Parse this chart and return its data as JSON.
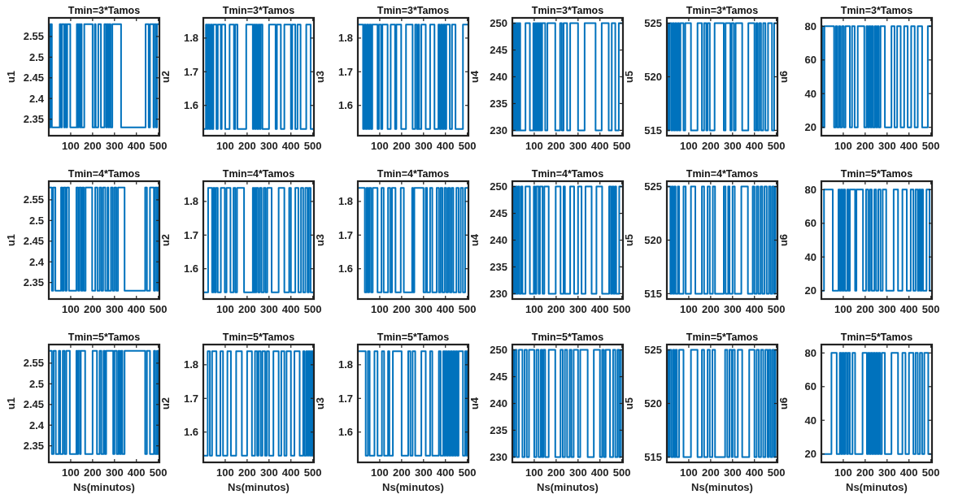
{
  "chart_data": [
    {
      "type": "step",
      "title": "Tmin=3*Tamos",
      "ylabel": "u1",
      "color": "#0072bd",
      "xlim": [
        0,
        505
      ],
      "ylim": [
        2.31,
        2.595
      ],
      "xticks": [
        100,
        200,
        300,
        400,
        500
      ],
      "yticks": [
        2.35,
        2.4,
        2.45,
        2.5,
        2.55
      ],
      "x": [
        0,
        4,
        8,
        14,
        50,
        56,
        60,
        70,
        74,
        80,
        84,
        98,
        128,
        132,
        136,
        142,
        146,
        150,
        162,
        200,
        210,
        214,
        226,
        238,
        254,
        262,
        266,
        272,
        276,
        282,
        290,
        330,
        442,
        456,
        462,
        478,
        482,
        490,
        494,
        505
      ],
      "values": [
        2.58,
        2.33,
        2.58,
        2.33,
        2.58,
        2.33,
        2.58,
        2.33,
        2.58,
        2.33,
        2.58,
        2.33,
        2.58,
        2.33,
        2.58,
        2.33,
        2.58,
        2.33,
        2.58,
        2.33,
        2.58,
        2.33,
        2.58,
        2.33,
        2.58,
        2.33,
        2.58,
        2.33,
        2.58,
        2.33,
        2.58,
        2.33,
        2.58,
        2.33,
        2.58,
        2.33,
        2.58,
        2.33,
        2.58,
        2.33
      ]
    },
    {
      "type": "step",
      "title": "Tmin=3*Tamos",
      "ylabel": "u2",
      "color": "#0072bd",
      "xlim": [
        0,
        505
      ],
      "ylim": [
        1.51,
        1.86
      ],
      "xticks": [
        100,
        200,
        300,
        400,
        500
      ],
      "yticks": [
        1.6,
        1.7,
        1.8
      ],
      "x": [
        0,
        12,
        18,
        22,
        28,
        34,
        40,
        46,
        60,
        66,
        80,
        84,
        100,
        120,
        140,
        146,
        156,
        196,
        226,
        230,
        236,
        240,
        246,
        252,
        258,
        262,
        270,
        300,
        330,
        336,
        354,
        370,
        400,
        406,
        420,
        430,
        444,
        470,
        490,
        505
      ],
      "values": [
        1.53,
        1.84,
        1.53,
        1.84,
        1.53,
        1.84,
        1.53,
        1.84,
        1.53,
        1.84,
        1.53,
        1.84,
        1.53,
        1.84,
        1.53,
        1.84,
        1.53,
        1.84,
        1.53,
        1.84,
        1.53,
        1.84,
        1.53,
        1.84,
        1.53,
        1.84,
        1.53,
        1.84,
        1.53,
        1.84,
        1.53,
        1.84,
        1.53,
        1.84,
        1.53,
        1.84,
        1.53,
        1.84,
        1.53,
        1.84
      ]
    },
    {
      "type": "step",
      "title": "Tmin=3*Tamos",
      "ylabel": "u3",
      "color": "#0072bd",
      "xlim": [
        0,
        505
      ],
      "ylim": [
        1.51,
        1.86
      ],
      "xticks": [
        100,
        200,
        300,
        400,
        500
      ],
      "yticks": [
        1.6,
        1.7,
        1.8
      ],
      "x": [
        0,
        24,
        30,
        36,
        42,
        48,
        54,
        60,
        66,
        90,
        96,
        106,
        112,
        136,
        150,
        170,
        176,
        198,
        220,
        250,
        262,
        270,
        276,
        280,
        290,
        310,
        330,
        350,
        368,
        374,
        380,
        386,
        392,
        398,
        404,
        420,
        430,
        446,
        480,
        505
      ],
      "values": [
        1.84,
        1.53,
        1.84,
        1.53,
        1.84,
        1.53,
        1.84,
        1.53,
        1.84,
        1.53,
        1.84,
        1.53,
        1.84,
        1.53,
        1.84,
        1.53,
        1.84,
        1.53,
        1.84,
        1.53,
        1.84,
        1.53,
        1.84,
        1.53,
        1.84,
        1.53,
        1.84,
        1.53,
        1.84,
        1.53,
        1.84,
        1.53,
        1.84,
        1.53,
        1.84,
        1.53,
        1.84,
        1.53,
        1.84,
        1.53
      ]
    },
    {
      "type": "step",
      "title": "Tmin=3*Tamos",
      "ylabel": "u4",
      "color": "#0072bd",
      "xlim": [
        0,
        505
      ],
      "ylim": [
        229,
        251
      ],
      "xticks": [
        100,
        200,
        300,
        400,
        500
      ],
      "yticks": [
        230,
        235,
        240,
        245,
        250
      ],
      "x": [
        0,
        4,
        8,
        12,
        16,
        20,
        24,
        28,
        32,
        36,
        60,
        80,
        96,
        100,
        104,
        108,
        112,
        116,
        120,
        124,
        128,
        132,
        136,
        150,
        160,
        196,
        218,
        226,
        234,
        250,
        264,
        300,
        330,
        380,
        408,
        440,
        454,
        470,
        486,
        505
      ],
      "values": [
        250,
        230,
        250,
        230,
        250,
        230,
        250,
        230,
        250,
        230,
        250,
        230,
        250,
        230,
        250,
        230,
        250,
        230,
        250,
        230,
        250,
        230,
        250,
        230,
        250,
        230,
        250,
        230,
        250,
        230,
        250,
        230,
        250,
        230,
        250,
        230,
        250,
        230,
        250,
        230
      ]
    },
    {
      "type": "step",
      "title": "Tmin=3*Tamos",
      "ylabel": "u5",
      "color": "#0072bd",
      "xlim": [
        0,
        505
      ],
      "ylim": [
        514.5,
        525.5
      ],
      "xticks": [
        100,
        200,
        300,
        400,
        500
      ],
      "yticks": [
        515,
        520,
        525
      ],
      "x": [
        0,
        6,
        12,
        20,
        26,
        32,
        38,
        44,
        50,
        56,
        62,
        76,
        84,
        110,
        140,
        160,
        170,
        180,
        186,
        196,
        218,
        260,
        268,
        290,
        296,
        306,
        314,
        344,
        372,
        400,
        408,
        414,
        422,
        430,
        440,
        450,
        462,
        480,
        490,
        505
      ],
      "values": [
        525,
        515,
        525,
        515,
        525,
        515,
        525,
        515,
        525,
        515,
        525,
        515,
        525,
        515,
        525,
        515,
        525,
        515,
        525,
        515,
        525,
        515,
        525,
        515,
        525,
        515,
        525,
        515,
        525,
        515,
        525,
        515,
        525,
        515,
        525,
        515,
        525,
        515,
        525,
        515
      ]
    },
    {
      "type": "step",
      "title": "Tmin=3*Tamos",
      "ylabel": "u6",
      "color": "#0072bd",
      "xlim": [
        0,
        505
      ],
      "ylim": [
        15,
        85
      ],
      "xticks": [
        100,
        200,
        300,
        400,
        500
      ],
      "yticks": [
        20,
        40,
        60,
        80
      ],
      "x": [
        0,
        6,
        14,
        58,
        66,
        72,
        80,
        86,
        94,
        102,
        110,
        130,
        140,
        152,
        166,
        196,
        206,
        212,
        218,
        224,
        230,
        236,
        244,
        250,
        256,
        262,
        270,
        290,
        320,
        334,
        346,
        362,
        378,
        394,
        410,
        426,
        440,
        460,
        486,
        505
      ],
      "values": [
        80,
        20,
        80,
        20,
        80,
        20,
        80,
        20,
        80,
        20,
        80,
        20,
        80,
        20,
        80,
        20,
        80,
        20,
        80,
        20,
        80,
        20,
        80,
        20,
        80,
        20,
        80,
        20,
        80,
        20,
        80,
        20,
        80,
        20,
        80,
        20,
        80,
        20,
        80,
        20
      ]
    },
    {
      "type": "step",
      "title": "Tmin=4*Tamos",
      "ylabel": "u1",
      "color": "#0072bd",
      "xlim": [
        0,
        505
      ],
      "ylim": [
        2.31,
        2.595
      ],
      "xticks": [
        100,
        200,
        300,
        400,
        500
      ],
      "yticks": [
        2.35,
        2.4,
        2.45,
        2.5,
        2.55
      ],
      "x": [
        0,
        14,
        20,
        30,
        56,
        62,
        68,
        76,
        82,
        92,
        126,
        134,
        140,
        148,
        154,
        160,
        168,
        198,
        212,
        222,
        232,
        240,
        248,
        258,
        268,
        272,
        284,
        292,
        300,
        308,
        316,
        346,
        440,
        448,
        462,
        480,
        486,
        494,
        498,
        505
      ],
      "values": [
        2.58,
        2.33,
        2.58,
        2.33,
        2.58,
        2.33,
        2.58,
        2.33,
        2.58,
        2.33,
        2.58,
        2.33,
        2.58,
        2.33,
        2.58,
        2.33,
        2.58,
        2.33,
        2.58,
        2.33,
        2.58,
        2.33,
        2.58,
        2.33,
        2.58,
        2.33,
        2.58,
        2.33,
        2.58,
        2.33,
        2.58,
        2.33,
        2.58,
        2.33,
        2.58,
        2.33,
        2.58,
        2.33,
        2.58,
        2.33
      ]
    },
    {
      "type": "step",
      "title": "Tmin=4*Tamos",
      "ylabel": "u2",
      "color": "#0072bd",
      "xlim": [
        0,
        505
      ],
      "ylim": [
        1.51,
        1.86
      ],
      "xticks": [
        100,
        200,
        300,
        400,
        500
      ],
      "yticks": [
        1.6,
        1.7,
        1.8
      ],
      "x": [
        0,
        22,
        40,
        46,
        52,
        58,
        66,
        80,
        98,
        106,
        124,
        138,
        146,
        154,
        186,
        226,
        230,
        234,
        238,
        242,
        250,
        258,
        266,
        276,
        284,
        292,
        312,
        344,
        370,
        392,
        400,
        420,
        434,
        446,
        456,
        466,
        476,
        482,
        490,
        505
      ],
      "values": [
        1.53,
        1.84,
        1.53,
        1.84,
        1.53,
        1.84,
        1.53,
        1.84,
        1.53,
        1.84,
        1.53,
        1.84,
        1.53,
        1.84,
        1.53,
        1.84,
        1.53,
        1.84,
        1.53,
        1.84,
        1.53,
        1.84,
        1.53,
        1.84,
        1.53,
        1.84,
        1.53,
        1.84,
        1.53,
        1.84,
        1.53,
        1.84,
        1.53,
        1.84,
        1.53,
        1.84,
        1.53,
        1.84,
        1.53,
        1.84
      ]
    },
    {
      "type": "step",
      "title": "Tmin=4*Tamos",
      "ylabel": "u3",
      "color": "#0072bd",
      "xlim": [
        0,
        505
      ],
      "ylim": [
        1.51,
        1.86
      ],
      "xticks": [
        100,
        200,
        300,
        400,
        500
      ],
      "yticks": [
        1.6,
        1.7,
        1.8
      ],
      "x": [
        0,
        32,
        40,
        46,
        52,
        60,
        68,
        90,
        108,
        118,
        138,
        148,
        156,
        172,
        196,
        210,
        248,
        252,
        258,
        300,
        310,
        316,
        330,
        340,
        360,
        370,
        378,
        386,
        396,
        404,
        412,
        420,
        428,
        436,
        450,
        460,
        470,
        480,
        490,
        505
      ],
      "values": [
        1.84,
        1.53,
        1.84,
        1.53,
        1.84,
        1.53,
        1.84,
        1.53,
        1.84,
        1.53,
        1.84,
        1.53,
        1.84,
        1.53,
        1.84,
        1.53,
        1.84,
        1.53,
        1.84,
        1.53,
        1.84,
        1.53,
        1.84,
        1.53,
        1.84,
        1.53,
        1.84,
        1.53,
        1.84,
        1.53,
        1.84,
        1.53,
        1.84,
        1.53,
        1.84,
        1.53,
        1.84,
        1.53,
        1.84,
        1.53
      ]
    },
    {
      "type": "step",
      "title": "Tmin=4*Tamos",
      "ylabel": "u4",
      "color": "#0072bd",
      "xlim": [
        0,
        505
      ],
      "ylim": [
        229,
        251
      ],
      "xticks": [
        100,
        200,
        300,
        400,
        500
      ],
      "yticks": [
        230,
        235,
        240,
        245,
        250
      ],
      "x": [
        0,
        4,
        8,
        12,
        16,
        20,
        26,
        32,
        40,
        46,
        60,
        80,
        98,
        104,
        110,
        120,
        126,
        138,
        146,
        166,
        198,
        220,
        234,
        240,
        264,
        282,
        300,
        316,
        334,
        362,
        384,
        410,
        442,
        450,
        456,
        462,
        468,
        474,
        488,
        505
      ],
      "values": [
        250,
        230,
        250,
        230,
        250,
        230,
        250,
        230,
        250,
        230,
        250,
        230,
        250,
        230,
        250,
        230,
        250,
        230,
        250,
        230,
        250,
        230,
        250,
        230,
        250,
        230,
        250,
        230,
        250,
        230,
        250,
        230,
        250,
        230,
        250,
        230,
        250,
        230,
        250,
        230
      ]
    },
    {
      "type": "step",
      "title": "Tmin=4*Tamos",
      "ylabel": "u5",
      "color": "#0072bd",
      "xlim": [
        0,
        505
      ],
      "ylim": [
        514.5,
        525.5
      ],
      "xticks": [
        100,
        200,
        300,
        400,
        500
      ],
      "yticks": [
        515,
        520,
        525
      ],
      "x": [
        0,
        16,
        22,
        28,
        34,
        40,
        50,
        56,
        76,
        86,
        110,
        130,
        160,
        170,
        186,
        196,
        210,
        220,
        260,
        268,
        280,
        286,
        300,
        310,
        340,
        370,
        392,
        400,
        410,
        418,
        428,
        436,
        446,
        456,
        466,
        474,
        482,
        490,
        496,
        505
      ],
      "values": [
        525,
        515,
        525,
        515,
        525,
        515,
        525,
        515,
        525,
        515,
        525,
        515,
        525,
        515,
        525,
        515,
        525,
        515,
        525,
        515,
        525,
        515,
        525,
        515,
        525,
        515,
        525,
        515,
        525,
        515,
        525,
        515,
        525,
        515,
        525,
        515,
        525,
        515,
        525,
        515
      ]
    },
    {
      "type": "step",
      "title": "Tmin=5*Tamos",
      "ylabel": "u6",
      "color": "#0072bd",
      "xlim": [
        0,
        505
      ],
      "ylim": [
        15,
        85
      ],
      "xticks": [
        100,
        200,
        300,
        400,
        500
      ],
      "yticks": [
        20,
        40,
        60,
        80
      ],
      "x": [
        0,
        12,
        52,
        78,
        84,
        90,
        96,
        102,
        108,
        118,
        124,
        130,
        154,
        160,
        190,
        204,
        214,
        222,
        230,
        242,
        250,
        260,
        270,
        280,
        296,
        330,
        350,
        370,
        390,
        408,
        420,
        430,
        440,
        446,
        452,
        458,
        464,
        480,
        494,
        505
      ],
      "values": [
        20,
        80,
        20,
        80,
        20,
        80,
        20,
        80,
        20,
        80,
        20,
        80,
        20,
        80,
        20,
        80,
        20,
        80,
        20,
        80,
        20,
        80,
        20,
        80,
        20,
        80,
        20,
        80,
        20,
        80,
        20,
        80,
        20,
        80,
        20,
        80,
        20,
        80,
        20,
        80
      ]
    },
    {
      "type": "step",
      "title": "Tmin=5*Tamos",
      "ylabel": "u1",
      "xlabel": "Ns(minutos)",
      "color": "#0072bd",
      "xlim": [
        0,
        505
      ],
      "ylim": [
        2.31,
        2.595
      ],
      "xticks": [
        100,
        200,
        300,
        400,
        500
      ],
      "yticks": [
        2.35,
        2.4,
        2.45,
        2.5,
        2.55
      ],
      "x": [
        0,
        14,
        22,
        32,
        46,
        52,
        64,
        72,
        80,
        96,
        126,
        130,
        134,
        142,
        146,
        166,
        200,
        220,
        232,
        240,
        250,
        256,
        262,
        294,
        300,
        310,
        318,
        324,
        330,
        336,
        346,
        440,
        448,
        462,
        480,
        486,
        494,
        498,
        502,
        505
      ],
      "values": [
        2.58,
        2.33,
        2.58,
        2.33,
        2.58,
        2.33,
        2.58,
        2.33,
        2.58,
        2.33,
        2.58,
        2.33,
        2.58,
        2.33,
        2.58,
        2.33,
        2.58,
        2.33,
        2.58,
        2.33,
        2.58,
        2.33,
        2.58,
        2.33,
        2.58,
        2.33,
        2.58,
        2.33,
        2.58,
        2.33,
        2.58,
        2.33,
        2.58,
        2.33,
        2.58,
        2.33,
        2.58,
        2.33,
        2.58,
        2.33
      ]
    },
    {
      "type": "step",
      "title": "Tmin=5*Tamos",
      "ylabel": "u2",
      "xlabel": "Ns(minutos)",
      "color": "#0072bd",
      "xlim": [
        0,
        505
      ],
      "ylim": [
        1.51,
        1.86
      ],
      "xticks": [
        100,
        200,
        300,
        400,
        500
      ],
      "yticks": [
        1.6,
        1.7,
        1.8
      ],
      "x": [
        0,
        20,
        30,
        40,
        60,
        78,
        90,
        110,
        126,
        150,
        176,
        200,
        222,
        236,
        246,
        252,
        262,
        270,
        282,
        290,
        300,
        320,
        344,
        356,
        370,
        380,
        400,
        416,
        440,
        456,
        462,
        470,
        476,
        480,
        486,
        490,
        494,
        498,
        502,
        505
      ],
      "values": [
        1.53,
        1.84,
        1.53,
        1.84,
        1.53,
        1.84,
        1.53,
        1.84,
        1.53,
        1.84,
        1.53,
        1.84,
        1.53,
        1.84,
        1.53,
        1.84,
        1.53,
        1.84,
        1.53,
        1.84,
        1.53,
        1.84,
        1.53,
        1.84,
        1.53,
        1.84,
        1.53,
        1.84,
        1.53,
        1.84,
        1.53,
        1.84,
        1.53,
        1.84,
        1.53,
        1.84,
        1.53,
        1.84,
        1.53,
        1.84
      ]
    },
    {
      "type": "step",
      "title": "Tmin=5*Tamos",
      "ylabel": "u3",
      "xlabel": "Ns(minutos)",
      "color": "#0072bd",
      "xlim": [
        0,
        505
      ],
      "ylim": [
        1.51,
        1.86
      ],
      "xticks": [
        100,
        200,
        300,
        400,
        500
      ],
      "yticks": [
        1.6,
        1.7,
        1.8
      ],
      "x": [
        0,
        36,
        46,
        54,
        76,
        90,
        110,
        120,
        138,
        144,
        160,
        200,
        230,
        240,
        250,
        262,
        290,
        310,
        330,
        340,
        370,
        378,
        390,
        396,
        400,
        406,
        412,
        418,
        424,
        430,
        436,
        442,
        448,
        454,
        460,
        480,
        490,
        496,
        500,
        505
      ],
      "values": [
        1.84,
        1.53,
        1.84,
        1.53,
        1.84,
        1.53,
        1.84,
        1.53,
        1.84,
        1.53,
        1.84,
        1.53,
        1.84,
        1.53,
        1.84,
        1.53,
        1.84,
        1.53,
        1.84,
        1.53,
        1.84,
        1.53,
        1.84,
        1.53,
        1.84,
        1.53,
        1.84,
        1.53,
        1.84,
        1.53,
        1.84,
        1.53,
        1.84,
        1.53,
        1.84,
        1.53,
        1.84,
        1.53,
        1.84,
        1.53
      ]
    },
    {
      "type": "step",
      "title": "Tmin=5*Tamos",
      "ylabel": "u4",
      "xlabel": "Ns(minutos)",
      "color": "#0072bd",
      "xlim": [
        0,
        505
      ],
      "ylim": [
        229,
        251
      ],
      "xticks": [
        100,
        200,
        300,
        400,
        500
      ],
      "yticks": [
        230,
        235,
        240,
        245,
        250
      ],
      "x": [
        0,
        6,
        12,
        20,
        30,
        46,
        56,
        66,
        76,
        100,
        110,
        120,
        130,
        136,
        142,
        150,
        166,
        196,
        220,
        230,
        240,
        250,
        262,
        270,
        280,
        300,
        310,
        344,
        372,
        400,
        410,
        418,
        426,
        446,
        460,
        470,
        480,
        488,
        496,
        505
      ],
      "values": [
        250,
        230,
        250,
        230,
        250,
        230,
        250,
        230,
        250,
        230,
        250,
        230,
        250,
        230,
        250,
        230,
        250,
        230,
        250,
        230,
        250,
        230,
        250,
        230,
        250,
        230,
        250,
        230,
        250,
        230,
        250,
        230,
        250,
        230,
        250,
        230,
        250,
        230,
        250,
        230
      ]
    },
    {
      "type": "step",
      "title": "Tmin=5*Tamos",
      "ylabel": "u5",
      "xlabel": "Ns(minutos)",
      "color": "#0072bd",
      "xlim": [
        0,
        505
      ],
      "ylim": [
        514.5,
        525.5
      ],
      "xticks": [
        100,
        200,
        300,
        400,
        500
      ],
      "yticks": [
        515,
        520,
        525
      ],
      "x": [
        0,
        6,
        12,
        20,
        28,
        34,
        40,
        46,
        56,
        76,
        110,
        140,
        160,
        170,
        186,
        196,
        208,
        220,
        266,
        276,
        286,
        296,
        300,
        310,
        324,
        344,
        376,
        400,
        410,
        420,
        430,
        440,
        450,
        460,
        466,
        474,
        482,
        490,
        496,
        505
      ],
      "values": [
        525,
        515,
        525,
        515,
        525,
        515,
        525,
        515,
        525,
        515,
        525,
        515,
        525,
        515,
        525,
        515,
        525,
        515,
        525,
        515,
        525,
        515,
        525,
        515,
        525,
        515,
        525,
        515,
        525,
        515,
        525,
        515,
        525,
        515,
        525,
        515,
        525,
        515,
        525,
        515
      ]
    },
    {
      "type": "step",
      "title": "Tmin=5*Tamos",
      "ylabel": "u6",
      "xlabel": "Ns(minutos)",
      "color": "#0072bd",
      "xlim": [
        0,
        505
      ],
      "ylim": [
        15,
        85
      ],
      "xticks": [
        100,
        200,
        300,
        400,
        500
      ],
      "yticks": [
        20,
        40,
        60,
        80
      ],
      "x": [
        0,
        46,
        70,
        84,
        90,
        96,
        102,
        108,
        116,
        122,
        130,
        142,
        154,
        188,
        208,
        214,
        220,
        226,
        232,
        238,
        244,
        250,
        256,
        262,
        268,
        276,
        290,
        320,
        350,
        370,
        384,
        400,
        420,
        430,
        440,
        450,
        460,
        470,
        488,
        505
      ],
      "values": [
        20,
        80,
        20,
        80,
        20,
        80,
        20,
        80,
        20,
        80,
        20,
        80,
        20,
        80,
        20,
        80,
        20,
        80,
        20,
        80,
        20,
        80,
        20,
        80,
        20,
        80,
        20,
        80,
        20,
        80,
        20,
        80,
        20,
        80,
        20,
        80,
        20,
        80,
        20,
        80
      ]
    }
  ]
}
